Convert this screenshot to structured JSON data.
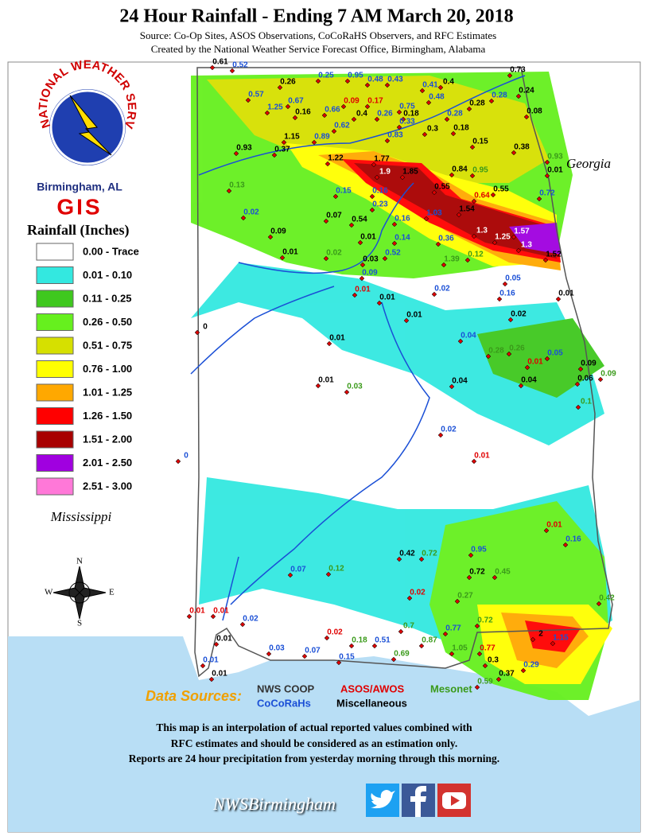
{
  "header": {
    "title": "24 Hour Rainfall - Ending 7 AM March 20, 2018",
    "source": "Source: Co-Op Sites, ASOS Observations, CoCoRaHS Observers, and RFC Estimates",
    "created_by": "Created by the National Weather Service Forecast Office, Birmingham, Alabama"
  },
  "logo": {
    "ring_text": "NATIONAL WEATHER SERVICE",
    "office": "Birmingham, AL",
    "gis": "GIS"
  },
  "legend": {
    "title": "Rainfall (Inches)",
    "items": [
      {
        "label": "0.00 - Trace",
        "color": "#ffffff"
      },
      {
        "label": "0.01 - 0.10",
        "color": "#33e8e0"
      },
      {
        "label": "0.11 - 0.25",
        "color": "#3fc81e"
      },
      {
        "label": "0.26 - 0.50",
        "color": "#66f01e"
      },
      {
        "label": "0.51 - 0.75",
        "color": "#d6e000"
      },
      {
        "label": "0.76 - 1.00",
        "color": "#ffff00"
      },
      {
        "label": "1.01 - 1.25",
        "color": "#ffa800"
      },
      {
        "label": "1.26 - 1.50",
        "color": "#ff0000"
      },
      {
        "label": "1.51 - 2.00",
        "color": "#a80000"
      },
      {
        "label": "2.01 - 2.50",
        "color": "#a000e0"
      },
      {
        "label": "2.51 - 3.00",
        "color": "#ff78d8"
      }
    ]
  },
  "map_labels": {
    "georgia": "Georgia",
    "mississippi": "Mississippi"
  },
  "compass": {
    "n": "N",
    "s": "S",
    "e": "E",
    "w": "W"
  },
  "stations": [
    {
      "value": 0.61,
      "color": "#000000"
    },
    {
      "value": 0.52,
      "color": "#1a4fd6"
    },
    {
      "value": 0.26,
      "color": "#000000"
    },
    {
      "value": 0.25,
      "color": "#1a4fd6"
    },
    {
      "value": 0.95,
      "color": "#1a4fd6"
    },
    {
      "value": 0.48,
      "color": "#1a4fd6"
    },
    {
      "value": 0.43,
      "color": "#1a4fd6"
    },
    {
      "value": 0.41,
      "color": "#1a4fd6"
    },
    {
      "value": 0.4,
      "color": "#000000"
    },
    {
      "value": 0.73,
      "color": "#000000"
    },
    {
      "value": 0.57,
      "color": "#1a4fd6"
    },
    {
      "value": 1.25,
      "color": "#1a4fd6"
    },
    {
      "value": 0.67,
      "color": "#1a4fd6"
    },
    {
      "value": 0.09,
      "color": "#e00000"
    },
    {
      "value": 0.17,
      "color": "#e00000"
    },
    {
      "value": 0.75,
      "color": "#1a4fd6"
    },
    {
      "value": 0.48,
      "color": "#1a4fd6"
    },
    {
      "value": 0.28,
      "color": "#000000"
    },
    {
      "value": 0.28,
      "color": "#1a4fd6"
    },
    {
      "value": 0.24,
      "color": "#000000"
    },
    {
      "value": 0.16,
      "color": "#000000"
    },
    {
      "value": 0.66,
      "color": "#1a4fd6"
    },
    {
      "value": 0.4,
      "color": "#000000"
    },
    {
      "value": 0.26,
      "color": "#1a4fd6"
    },
    {
      "value": 0.18,
      "color": "#000000"
    },
    {
      "value": 0.28,
      "color": "#1a4fd6"
    },
    {
      "value": 0.08,
      "color": "#000000"
    },
    {
      "value": 0.62,
      "color": "#1a4fd6"
    },
    {
      "value": 0.83,
      "color": "#1a4fd6"
    },
    {
      "value": 0.33,
      "color": "#1a4fd6"
    },
    {
      "value": 0.3,
      "color": "#000000"
    },
    {
      "value": 0.18,
      "color": "#000000"
    },
    {
      "value": 0.15,
      "color": "#000000"
    },
    {
      "value": 0.38,
      "color": "#000000"
    },
    {
      "value": 0.93,
      "color": "#000000"
    },
    {
      "value": 0.37,
      "color": "#000000"
    },
    {
      "value": 1.15,
      "color": "#000000"
    },
    {
      "value": 0.89,
      "color": "#1a4fd6"
    },
    {
      "value": 1.22,
      "color": "#000000"
    },
    {
      "value": 1.77,
      "color": "#000000"
    },
    {
      "value": 1.9,
      "color": "#ffffff"
    },
    {
      "value": 1.85,
      "color": "#000000"
    },
    {
      "value": 0.84,
      "color": "#000000"
    },
    {
      "value": 0.95,
      "color": "#3a9a1a"
    },
    {
      "value": 0.01,
      "color": "#000000"
    },
    {
      "value": 0.93,
      "color": "#3a9a1a"
    },
    {
      "value": 0.13,
      "color": "#3a9a1a"
    },
    {
      "value": 0.15,
      "color": "#1a4fd6"
    },
    {
      "value": 0.16,
      "color": "#1a4fd6"
    },
    {
      "value": 0.55,
      "color": "#000000"
    },
    {
      "value": 0.64,
      "color": "#e00000"
    },
    {
      "value": 0.55,
      "color": "#000000"
    },
    {
      "value": 0.72,
      "color": "#1a4fd6"
    },
    {
      "value": 0.23,
      "color": "#1a4fd6"
    },
    {
      "value": 1.03,
      "color": "#1a4fd6"
    },
    {
      "value": 1.54,
      "color": "#000000"
    },
    {
      "value": 0.02,
      "color": "#1a4fd6"
    },
    {
      "value": 0.07,
      "color": "#000000"
    },
    {
      "value": 0.54,
      "color": "#000000"
    },
    {
      "value": 0.16,
      "color": "#1a4fd6"
    },
    {
      "value": 1.3,
      "color": "#ffffff"
    },
    {
      "value": 1.25,
      "color": "#ffffff"
    },
    {
      "value": 1.57,
      "color": "#ffffff"
    },
    {
      "value": 1.3,
      "color": "#ffffff"
    },
    {
      "value": 1.52,
      "color": "#000000"
    },
    {
      "value": 0.09,
      "color": "#000000"
    },
    {
      "value": 0.01,
      "color": "#000000"
    },
    {
      "value": 0.14,
      "color": "#1a4fd6"
    },
    {
      "value": 0.36,
      "color": "#1a4fd6"
    },
    {
      "value": 0.01,
      "color": "#000000"
    },
    {
      "value": 0.02,
      "color": "#3a9a1a"
    },
    {
      "value": 0.52,
      "color": "#1a4fd6"
    },
    {
      "value": 1.39,
      "color": "#3a9a1a"
    },
    {
      "value": 0.12,
      "color": "#3a9a1a"
    },
    {
      "value": 0.03,
      "color": "#000000"
    },
    {
      "value": 0.09,
      "color": "#1a4fd6"
    },
    {
      "value": 0.05,
      "color": "#1a4fd6"
    },
    {
      "value": 0.01,
      "color": "#e00000"
    },
    {
      "value": 0.01,
      "color": "#000000"
    },
    {
      "value": 0.02,
      "color": "#1a4fd6"
    },
    {
      "value": 0.01,
      "color": "#000000"
    },
    {
      "value": 0.16,
      "color": "#1a4fd6"
    },
    {
      "value": 0.02,
      "color": "#000000"
    },
    {
      "value": 0.01,
      "color": "#000000"
    },
    {
      "value": 0.01,
      "color": "#000000"
    },
    {
      "value": 0.04,
      "color": "#1a4fd6"
    },
    {
      "value": 0.28,
      "color": "#3a9a1a"
    },
    {
      "value": 0.26,
      "color": "#3a9a1a"
    },
    {
      "value": 0.05,
      "color": "#1a4fd6"
    },
    {
      "value": 0.01,
      "color": "#e00000"
    },
    {
      "value": 0.09,
      "color": "#000000"
    },
    {
      "value": 0.09,
      "color": "#3a9a1a"
    },
    {
      "value": 0.06,
      "color": "#000000"
    },
    {
      "value": 0.04,
      "color": "#000000"
    },
    {
      "value": 0.04,
      "color": "#000000"
    },
    {
      "value": 0.01,
      "color": "#000000"
    },
    {
      "value": 0.03,
      "color": "#3a9a1a"
    },
    {
      "value": 0.1,
      "color": "#3a9a1a"
    },
    {
      "value": 0.02,
      "color": "#1a4fd6"
    },
    {
      "value": 0.01,
      "color": "#e00000"
    },
    {
      "value": 0,
      "color": "#000000"
    },
    {
      "value": 0,
      "color": "#1a4fd6"
    },
    {
      "value": 0.01,
      "color": "#e00000"
    },
    {
      "value": 0.16,
      "color": "#1a4fd6"
    },
    {
      "value": 0.42,
      "color": "#000000"
    },
    {
      "value": 0.72,
      "color": "#3a9a1a"
    },
    {
      "value": 0.95,
      "color": "#1a4fd6"
    },
    {
      "value": 0.72,
      "color": "#000000"
    },
    {
      "value": 0.45,
      "color": "#3a9a1a"
    },
    {
      "value": 0.27,
      "color": "#3a9a1a"
    },
    {
      "value": 0.02,
      "color": "#e00000"
    },
    {
      "value": 0.12,
      "color": "#3a9a1a"
    },
    {
      "value": 0.07,
      "color": "#1a4fd6"
    },
    {
      "value": 0.42,
      "color": "#3a9a1a"
    },
    {
      "value": 2,
      "color": "#000000"
    },
    {
      "value": 1.15,
      "color": "#1a4fd6"
    },
    {
      "value": 0.72,
      "color": "#3a9a1a"
    },
    {
      "value": 0.77,
      "color": "#1a4fd6"
    },
    {
      "value": 0.7,
      "color": "#3a9a1a"
    },
    {
      "value": 0.51,
      "color": "#1a4fd6"
    },
    {
      "value": 0.87,
      "color": "#3a9a1a"
    },
    {
      "value": 1.05,
      "color": "#3a9a1a"
    },
    {
      "value": 0.77,
      "color": "#e00000"
    },
    {
      "value": 0.3,
      "color": "#000000"
    },
    {
      "value": 0.29,
      "color": "#1a4fd6"
    },
    {
      "value": 0.37,
      "color": "#000000"
    },
    {
      "value": 0.59,
      "color": "#3a9a1a"
    },
    {
      "value": 0.69,
      "color": "#3a9a1a"
    },
    {
      "value": 0.15,
      "color": "#1a4fd6"
    },
    {
      "value": 0.18,
      "color": "#3a9a1a"
    },
    {
      "value": 0.01,
      "color": "#000000"
    },
    {
      "value": 0.01,
      "color": "#1a4fd6"
    },
    {
      "value": 0.03,
      "color": "#1a4fd6"
    },
    {
      "value": 0.07,
      "color": "#1a4fd6"
    },
    {
      "value": 0.02,
      "color": "#e00000"
    },
    {
      "value": 0.01,
      "color": "#e00000"
    },
    {
      "value": 0.01,
      "color": "#e00000"
    },
    {
      "value": 0.01,
      "color": "#000000"
    },
    {
      "value": 0.02,
      "color": "#1a4fd6"
    }
  ],
  "data_sources": {
    "title": "Data Sources:",
    "items": [
      {
        "label": "NWS COOP",
        "color": "#333333"
      },
      {
        "label": "ASOS/AWOS",
        "color": "#e00000"
      },
      {
        "label": "Mesonet",
        "color": "#3a9a1a"
      },
      {
        "label": "CoCoRaHs",
        "color": "#1a4fd6"
      },
      {
        "label": "Miscellaneous",
        "color": "#000000"
      }
    ]
  },
  "footer": {
    "notes": [
      "This map is an interpolation of actual reported values combined with",
      "RFC estimates and should be considered as an estimation only.",
      "Reports are 24 hour precipitation from yesterday morning through this morning."
    ],
    "social": "NWSBirmingham"
  }
}
